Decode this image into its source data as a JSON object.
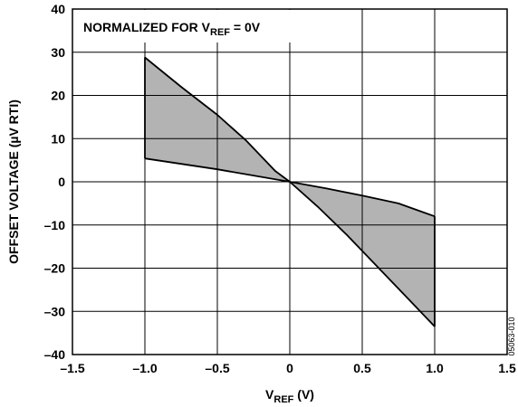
{
  "chart_data": {
    "type": "area",
    "title": "",
    "annotation": {
      "main": "NORMALIZED FOR V",
      "sub": "REF",
      "suffix": " = 0V"
    },
    "xlabel": {
      "main": "V",
      "sub": "REF",
      "suffix": " (V)"
    },
    "ylabel": "OFFSET VOLTAGE (µV RTI)",
    "xlim": [
      -1.5,
      1.5
    ],
    "ylim": [
      -40,
      40
    ],
    "x_ticks": [
      -1.5,
      -1.0,
      -0.5,
      0,
      0.5,
      1.0,
      1.5
    ],
    "x_tick_labels": [
      "–1.5",
      "–1.0",
      "–0.5",
      "0",
      "0.5",
      "1.0",
      "1.5"
    ],
    "y_ticks": [
      40,
      30,
      20,
      10,
      0,
      -10,
      -20,
      -30,
      -40
    ],
    "y_tick_labels": [
      "40",
      "30",
      "20",
      "10",
      "0",
      "–10",
      "–20",
      "–30",
      "–40"
    ],
    "grid": true,
    "fill_color": "#b3b3b3",
    "line_color": "#000000",
    "series": [
      {
        "x": [
          -1.0,
          -0.75,
          -0.5,
          -0.3,
          -0.1,
          0,
          0.2,
          0.4,
          0.6,
          0.8,
          1.0
        ],
        "values": [
          28.8,
          22.0,
          15.5,
          9.5,
          2.5,
          0,
          -6.0,
          -12.5,
          -19.5,
          -26.5,
          -33.5
        ]
      },
      {
        "x": [
          -1.0,
          -0.5,
          0,
          0.25,
          0.5,
          0.75,
          0.9,
          1.0
        ],
        "values": [
          5.4,
          2.9,
          0,
          -1.5,
          -3.2,
          -5.0,
          -6.8,
          -8.0
        ]
      }
    ],
    "figure_id": "05063-010"
  }
}
